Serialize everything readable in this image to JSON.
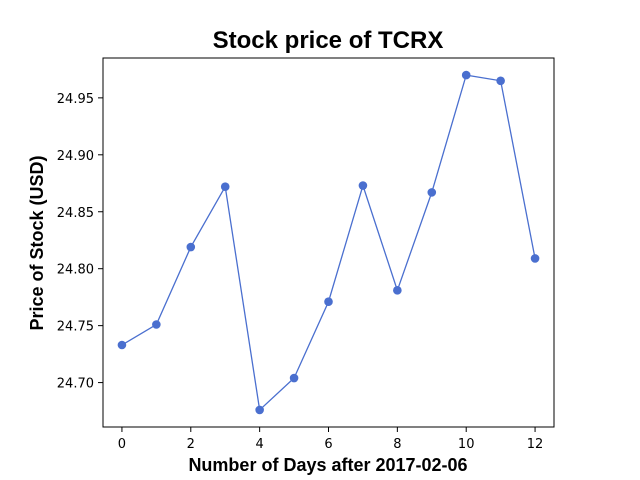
{
  "chart_data": {
    "type": "line",
    "title": "Stock price of TCRX",
    "xlabel": "Number of Days after 2017-02-06",
    "ylabel": "Price of Stock (USD)",
    "x": [
      0,
      1,
      2,
      3,
      4,
      5,
      6,
      7,
      8,
      9,
      10,
      11,
      12
    ],
    "series": [
      {
        "values": [
          24.733,
          24.751,
          24.819,
          24.872,
          24.676,
          24.704,
          24.771,
          24.873,
          24.781,
          24.867,
          24.97,
          24.965,
          24.809
        ]
      }
    ],
    "xlim": [
      -0.55,
      12.55
    ],
    "ylim": [
      24.661,
      24.985
    ],
    "xticks": [
      0,
      2,
      4,
      6,
      8,
      10,
      12
    ],
    "xtick_labels": [
      "0",
      "2",
      "4",
      "6",
      "8",
      "10",
      "12"
    ],
    "yticks": [
      24.7,
      24.75,
      24.8,
      24.85,
      24.9,
      24.95
    ],
    "ytick_labels": [
      "24.70",
      "24.75",
      "24.80",
      "24.85",
      "24.90",
      "24.95"
    ],
    "grid": false,
    "line_color": "#4a6fcf",
    "marker": "circle"
  }
}
